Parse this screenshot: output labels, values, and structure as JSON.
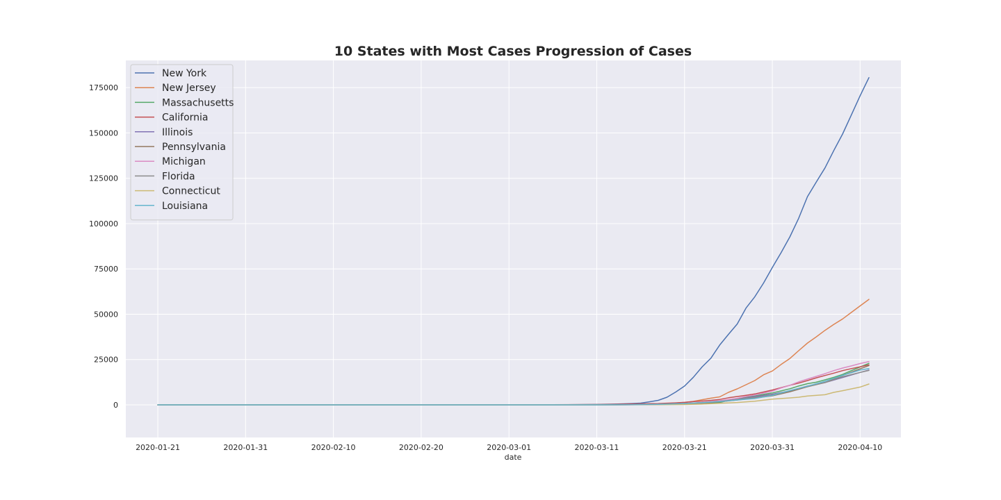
{
  "chart_data": {
    "type": "line",
    "title": "10 States with Most Cases Progression of Cases",
    "xlabel": "date",
    "ylabel": "",
    "x_range": [
      "2020-01-21",
      "2020-04-11"
    ],
    "ylim": [
      -18000,
      190000
    ],
    "x_ticks": [
      "2020-01-21",
      "2020-01-31",
      "2020-02-10",
      "2020-02-20",
      "2020-03-01",
      "2020-03-11",
      "2020-03-21",
      "2020-03-31",
      "2020-04-10"
    ],
    "y_ticks": [
      0,
      25000,
      50000,
      75000,
      100000,
      125000,
      150000,
      175000
    ],
    "grid": true,
    "legend_position": "top-left",
    "background": "#eaeaf2",
    "series": [
      {
        "name": "New York",
        "color": "#4c72b0",
        "points": [
          [
            "2020-01-21",
            0
          ],
          [
            "2020-03-01",
            0
          ],
          [
            "2020-03-05",
            20
          ],
          [
            "2020-03-09",
            140
          ],
          [
            "2020-03-11",
            220
          ],
          [
            "2020-03-13",
            420
          ],
          [
            "2020-03-15",
            730
          ],
          [
            "2020-03-16",
            950
          ],
          [
            "2020-03-17",
            1700
          ],
          [
            "2020-03-18",
            2500
          ],
          [
            "2020-03-19",
            4200
          ],
          [
            "2020-03-20",
            7100
          ],
          [
            "2020-03-21",
            10400
          ],
          [
            "2020-03-22",
            15200
          ],
          [
            "2020-03-23",
            20900
          ],
          [
            "2020-03-24",
            25700
          ],
          [
            "2020-03-25",
            33000
          ],
          [
            "2020-03-26",
            38900
          ],
          [
            "2020-03-27",
            44600
          ],
          [
            "2020-03-28",
            53400
          ],
          [
            "2020-03-29",
            59600
          ],
          [
            "2020-03-30",
            67200
          ],
          [
            "2020-03-31",
            75800
          ],
          [
            "2020-04-01",
            84000
          ],
          [
            "2020-04-02",
            92700
          ],
          [
            "2020-04-03",
            102900
          ],
          [
            "2020-04-04",
            114900
          ],
          [
            "2020-04-05",
            122900
          ],
          [
            "2020-04-06",
            130700
          ],
          [
            "2020-04-07",
            140300
          ],
          [
            "2020-04-08",
            149400
          ],
          [
            "2020-04-09",
            159900
          ],
          [
            "2020-04-10",
            170500
          ],
          [
            "2020-04-11",
            180500
          ]
        ]
      },
      {
        "name": "New Jersey",
        "color": "#dd8452",
        "points": [
          [
            "2020-01-21",
            0
          ],
          [
            "2020-03-04",
            0
          ],
          [
            "2020-03-11",
            30
          ],
          [
            "2020-03-15",
            100
          ],
          [
            "2020-03-17",
            270
          ],
          [
            "2020-03-19",
            740
          ],
          [
            "2020-03-21",
            1330
          ],
          [
            "2020-03-22",
            1910
          ],
          [
            "2020-03-23",
            2840
          ],
          [
            "2020-03-24",
            3670
          ],
          [
            "2020-03-25",
            4400
          ],
          [
            "2020-03-26",
            6900
          ],
          [
            "2020-03-27",
            8800
          ],
          [
            "2020-03-28",
            11100
          ],
          [
            "2020-03-29",
            13400
          ],
          [
            "2020-03-30",
            16600
          ],
          [
            "2020-03-31",
            18700
          ],
          [
            "2020-04-01",
            22300
          ],
          [
            "2020-04-02",
            25600
          ],
          [
            "2020-04-03",
            29900
          ],
          [
            "2020-04-04",
            34100
          ],
          [
            "2020-04-05",
            37500
          ],
          [
            "2020-04-06",
            41100
          ],
          [
            "2020-04-07",
            44400
          ],
          [
            "2020-04-08",
            47400
          ],
          [
            "2020-04-09",
            51000
          ],
          [
            "2020-04-10",
            54600
          ],
          [
            "2020-04-11",
            58200
          ]
        ]
      },
      {
        "name": "Massachusetts",
        "color": "#55a868",
        "points": [
          [
            "2020-01-21",
            0
          ],
          [
            "2020-03-01",
            0
          ],
          [
            "2020-03-11",
            90
          ],
          [
            "2020-03-15",
            160
          ],
          [
            "2020-03-18",
            250
          ],
          [
            "2020-03-21",
            530
          ],
          [
            "2020-03-23",
            780
          ],
          [
            "2020-03-25",
            1300
          ],
          [
            "2020-03-26",
            2400
          ],
          [
            "2020-03-27",
            3200
          ],
          [
            "2020-03-28",
            4300
          ],
          [
            "2020-03-29",
            4900
          ],
          [
            "2020-03-30",
            5800
          ],
          [
            "2020-03-31",
            6600
          ],
          [
            "2020-04-01",
            7700
          ],
          [
            "2020-04-02",
            8900
          ],
          [
            "2020-04-03",
            10400
          ],
          [
            "2020-04-04",
            11700
          ],
          [
            "2020-04-05",
            12500
          ],
          [
            "2020-04-06",
            13800
          ],
          [
            "2020-04-07",
            15200
          ],
          [
            "2020-04-08",
            16800
          ],
          [
            "2020-04-09",
            18900
          ],
          [
            "2020-04-10",
            20900
          ],
          [
            "2020-04-11",
            22900
          ]
        ]
      },
      {
        "name": "California",
        "color": "#c44e52",
        "points": [
          [
            "2020-01-21",
            0
          ],
          [
            "2020-01-26",
            2
          ],
          [
            "2020-02-20",
            10
          ],
          [
            "2020-03-01",
            30
          ],
          [
            "2020-03-06",
            70
          ],
          [
            "2020-03-11",
            180
          ],
          [
            "2020-03-14",
            370
          ],
          [
            "2020-03-16",
            560
          ],
          [
            "2020-03-18",
            750
          ],
          [
            "2020-03-20",
            1100
          ],
          [
            "2020-03-21",
            1400
          ],
          [
            "2020-03-22",
            1800
          ],
          [
            "2020-03-23",
            2100
          ],
          [
            "2020-03-24",
            2500
          ],
          [
            "2020-03-25",
            3000
          ],
          [
            "2020-03-26",
            3900
          ],
          [
            "2020-03-27",
            4600
          ],
          [
            "2020-03-28",
            5300
          ],
          [
            "2020-03-29",
            6000
          ],
          [
            "2020-03-30",
            7100
          ],
          [
            "2020-03-31",
            8200
          ],
          [
            "2020-04-01",
            9500
          ],
          [
            "2020-04-02",
            10800
          ],
          [
            "2020-04-03",
            12000
          ],
          [
            "2020-04-04",
            13400
          ],
          [
            "2020-04-05",
            14900
          ],
          [
            "2020-04-06",
            16200
          ],
          [
            "2020-04-07",
            17500
          ],
          [
            "2020-04-08",
            18900
          ],
          [
            "2020-04-09",
            20000
          ],
          [
            "2020-04-10",
            21000
          ],
          [
            "2020-04-11",
            22100
          ]
        ]
      },
      {
        "name": "Illinois",
        "color": "#8172b3",
        "points": [
          [
            "2020-01-21",
            0
          ],
          [
            "2020-03-01",
            0
          ],
          [
            "2020-03-11",
            25
          ],
          [
            "2020-03-15",
            95
          ],
          [
            "2020-03-18",
            290
          ],
          [
            "2020-03-21",
            750
          ],
          [
            "2020-03-23",
            1300
          ],
          [
            "2020-03-25",
            1900
          ],
          [
            "2020-03-27",
            3000
          ],
          [
            "2020-03-29",
            4600
          ],
          [
            "2020-03-31",
            5900
          ],
          [
            "2020-04-02",
            7700
          ],
          [
            "2020-04-04",
            10400
          ],
          [
            "2020-04-06",
            12300
          ],
          [
            "2020-04-08",
            15100
          ],
          [
            "2020-04-10",
            17900
          ],
          [
            "2020-04-11",
            19200
          ]
        ]
      },
      {
        "name": "Pennsylvania",
        "color": "#937860",
        "points": [
          [
            "2020-01-21",
            0
          ],
          [
            "2020-03-01",
            0
          ],
          [
            "2020-03-11",
            15
          ],
          [
            "2020-03-15",
            70
          ],
          [
            "2020-03-18",
            180
          ],
          [
            "2020-03-21",
            480
          ],
          [
            "2020-03-23",
            850
          ],
          [
            "2020-03-25",
            1700
          ],
          [
            "2020-03-27",
            2700
          ],
          [
            "2020-03-29",
            3800
          ],
          [
            "2020-03-31",
            5000
          ],
          [
            "2020-04-02",
            7200
          ],
          [
            "2020-04-04",
            10000
          ],
          [
            "2020-04-06",
            12300
          ],
          [
            "2020-04-08",
            16200
          ],
          [
            "2020-04-10",
            19900
          ],
          [
            "2020-04-11",
            21700
          ]
        ]
      },
      {
        "name": "Michigan",
        "color": "#da8bc3",
        "points": [
          [
            "2020-01-21",
            0
          ],
          [
            "2020-03-09",
            0
          ],
          [
            "2020-03-11",
            2
          ],
          [
            "2020-03-15",
            40
          ],
          [
            "2020-03-18",
            330
          ],
          [
            "2020-03-20",
            550
          ],
          [
            "2020-03-21",
            800
          ],
          [
            "2020-03-22",
            1000
          ],
          [
            "2020-03-23",
            1300
          ],
          [
            "2020-03-24",
            1800
          ],
          [
            "2020-03-25",
            2300
          ],
          [
            "2020-03-26",
            2900
          ],
          [
            "2020-03-27",
            3600
          ],
          [
            "2020-03-28",
            4600
          ],
          [
            "2020-03-29",
            5500
          ],
          [
            "2020-03-30",
            6500
          ],
          [
            "2020-03-31",
            7600
          ],
          [
            "2020-04-01",
            9300
          ],
          [
            "2020-04-02",
            10800
          ],
          [
            "2020-04-03",
            12700
          ],
          [
            "2020-04-04",
            14200
          ],
          [
            "2020-04-05",
            15700
          ],
          [
            "2020-04-06",
            17200
          ],
          [
            "2020-04-07",
            18900
          ],
          [
            "2020-04-08",
            20300
          ],
          [
            "2020-04-09",
            21500
          ],
          [
            "2020-04-10",
            22800
          ],
          [
            "2020-04-11",
            23900
          ]
        ]
      },
      {
        "name": "Florida",
        "color": "#8c8c8c",
        "points": [
          [
            "2020-01-21",
            0
          ],
          [
            "2020-03-01",
            2
          ],
          [
            "2020-03-11",
            35
          ],
          [
            "2020-03-15",
            110
          ],
          [
            "2020-03-18",
            330
          ],
          [
            "2020-03-21",
            760
          ],
          [
            "2020-03-23",
            1200
          ],
          [
            "2020-03-25",
            1900
          ],
          [
            "2020-03-27",
            2900
          ],
          [
            "2020-03-29",
            4100
          ],
          [
            "2020-03-31",
            5500
          ],
          [
            "2020-04-02",
            7800
          ],
          [
            "2020-04-04",
            10300
          ],
          [
            "2020-04-06",
            12300
          ],
          [
            "2020-04-08",
            15500
          ],
          [
            "2020-04-10",
            17900
          ],
          [
            "2020-04-11",
            19000
          ]
        ]
      },
      {
        "name": "Connecticut",
        "color": "#ccb974",
        "points": [
          [
            "2020-01-21",
            0
          ],
          [
            "2020-03-09",
            0
          ],
          [
            "2020-03-11",
            3
          ],
          [
            "2020-03-15",
            25
          ],
          [
            "2020-03-18",
            100
          ],
          [
            "2020-03-21",
            190
          ],
          [
            "2020-03-23",
            420
          ],
          [
            "2020-03-25",
            870
          ],
          [
            "2020-03-27",
            1290
          ],
          [
            "2020-03-29",
            1990
          ],
          [
            "2020-03-31",
            3130
          ],
          [
            "2020-04-02",
            3820
          ],
          [
            "2020-04-03",
            4200
          ],
          [
            "2020-04-04",
            4900
          ],
          [
            "2020-04-06",
            5600
          ],
          [
            "2020-04-07",
            6900
          ],
          [
            "2020-04-08",
            7800
          ],
          [
            "2020-04-09",
            8800
          ],
          [
            "2020-04-10",
            9800
          ],
          [
            "2020-04-11",
            11500
          ]
        ]
      },
      {
        "name": "Louisiana",
        "color": "#64b5cd",
        "points": [
          [
            "2020-01-21",
            0
          ],
          [
            "2020-03-09",
            0
          ],
          [
            "2020-03-11",
            10
          ],
          [
            "2020-03-15",
            80
          ],
          [
            "2020-03-18",
            280
          ],
          [
            "2020-03-21",
            760
          ],
          [
            "2020-03-23",
            1200
          ],
          [
            "2020-03-25",
            1800
          ],
          [
            "2020-03-27",
            2700
          ],
          [
            "2020-03-29",
            3500
          ],
          [
            "2020-03-31",
            5200
          ],
          [
            "2020-04-02",
            7900
          ],
          [
            "2020-04-04",
            10300
          ],
          [
            "2020-04-06",
            13000
          ],
          [
            "2020-04-08",
            16300
          ],
          [
            "2020-04-10",
            19200
          ],
          [
            "2020-04-11",
            20000
          ]
        ]
      }
    ]
  }
}
